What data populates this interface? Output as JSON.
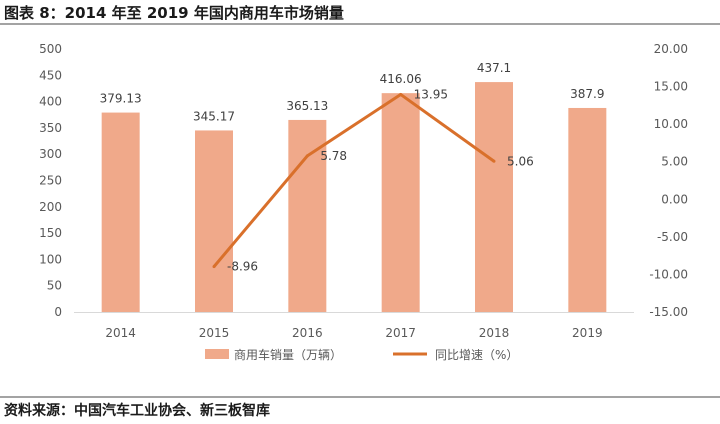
{
  "figure": {
    "title": "图表 8：2014 年至 2019 年国内商用车市场销量",
    "source": "资料来源：中国汽车工业协会、新三板智库"
  },
  "colors": {
    "bar": "#F0A98A",
    "line": "#D9702B",
    "axis": "#D9D9D9",
    "text": "#595959"
  },
  "chart_data": {
    "type": "bar",
    "categories": [
      "2014",
      "2015",
      "2016",
      "2017",
      "2018",
      "2019"
    ],
    "series": [
      {
        "name": "商用车销量（万辆）",
        "type": "bar",
        "axis": "left",
        "values": [
          379.13,
          345.17,
          365.13,
          416.06,
          437.1,
          387.9
        ],
        "labels": [
          "379.13",
          "345.17",
          "365.13",
          "416.06",
          "437.1",
          "387.9"
        ]
      },
      {
        "name": "同比增速（%）",
        "type": "line",
        "axis": "right",
        "values": [
          null,
          -8.96,
          5.78,
          13.95,
          5.06,
          null
        ],
        "labels": [
          "",
          "-8.96",
          "5.78",
          "13.95",
          "5.06",
          ""
        ]
      }
    ],
    "y_left": {
      "min": 0,
      "max": 500,
      "step": 50,
      "ticks": [
        "0",
        "50",
        "100",
        "150",
        "200",
        "250",
        "300",
        "350",
        "400",
        "450",
        "500"
      ]
    },
    "y_right": {
      "min": -15,
      "max": 20,
      "step": 5,
      "ticks": [
        "-15.00",
        "-10.00",
        "-5.00",
        "0.00",
        "5.00",
        "10.00",
        "15.00",
        "20.00"
      ]
    },
    "grid": false,
    "legend": "bottom"
  }
}
